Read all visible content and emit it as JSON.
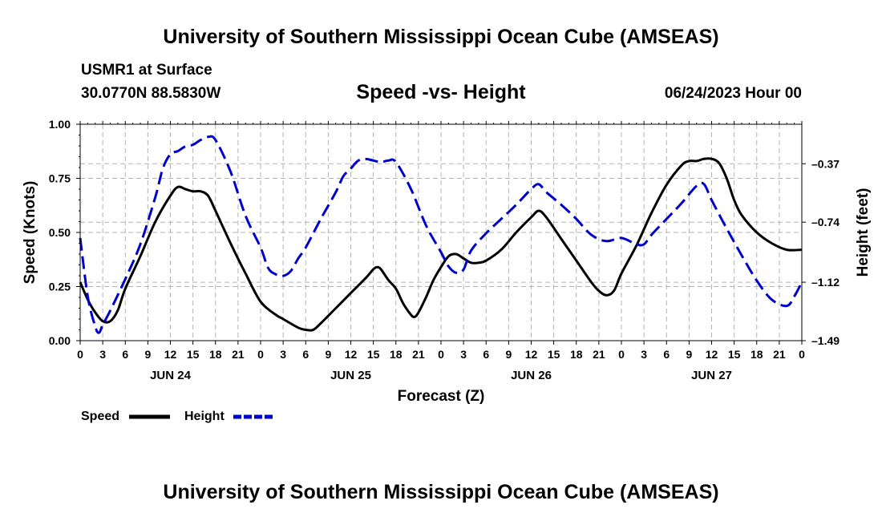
{
  "header": {
    "title": "University of Southern Mississippi Ocean Cube (AMSEAS)",
    "station": "USMR1 at Surface",
    "coords": "30.0770N  88.5830W",
    "chart_title": "Speed -vs- Height",
    "datetime": "06/24/2023 Hour 00"
  },
  "footer": {
    "title": "University of Southern Mississippi Ocean Cube (AMSEAS)"
  },
  "legend": [
    {
      "label": "Speed",
      "color": "#000000",
      "dash": "solid"
    },
    {
      "label": "Height",
      "color": "#0000cc",
      "dash": "dashed"
    }
  ],
  "chart_data": {
    "type": "line",
    "xlabel": "Forecast (Z)",
    "ylabel_left": "Speed (Knots)",
    "ylabel_right": "Height (feet)",
    "x_range": [
      0,
      96
    ],
    "x_tick_step": 3,
    "x_tick_labels": [
      "0",
      "3",
      "6",
      "9",
      "12",
      "15",
      "18",
      "21",
      "0",
      "3",
      "6",
      "9",
      "12",
      "15",
      "18",
      "21",
      "0",
      "3",
      "6",
      "9",
      "12",
      "15",
      "18",
      "21",
      "0",
      "3",
      "6",
      "9",
      "12",
      "15",
      "18",
      "21",
      "0"
    ],
    "day_labels": [
      {
        "hour": 12,
        "label": "JUN 24"
      },
      {
        "hour": 36,
        "label": "JUN 25"
      },
      {
        "hour": 60,
        "label": "JUN 26"
      },
      {
        "hour": 84,
        "label": "JUN 27"
      }
    ],
    "y_left": {
      "range": [
        0,
        1.0
      ],
      "ticks": [
        "0.00",
        "0.25",
        "0.50",
        "0.75",
        "1.00"
      ],
      "values": [
        0,
        0.25,
        0.5,
        0.75,
        1.0
      ]
    },
    "y_right": {
      "range": [
        -1.49,
        -0.12
      ],
      "ticks": [
        "-0.37",
        "-0.74",
        "-1.12",
        "-1.49"
      ],
      "values": [
        -0.37,
        -0.74,
        -1.12,
        -1.49
      ]
    },
    "series": [
      {
        "name": "Speed",
        "axis": "left",
        "color": "#000000",
        "points": [
          [
            0,
            0.27
          ],
          [
            1,
            0.19
          ],
          [
            2,
            0.13
          ],
          [
            3,
            0.09
          ],
          [
            4,
            0.09
          ],
          [
            5,
            0.14
          ],
          [
            6,
            0.24
          ],
          [
            8,
            0.39
          ],
          [
            10,
            0.55
          ],
          [
            12,
            0.67
          ],
          [
            13,
            0.71
          ],
          [
            14,
            0.7
          ],
          [
            15,
            0.69
          ],
          [
            16,
            0.69
          ],
          [
            17,
            0.67
          ],
          [
            18,
            0.6
          ],
          [
            20,
            0.45
          ],
          [
            22,
            0.31
          ],
          [
            24,
            0.18
          ],
          [
            26,
            0.12
          ],
          [
            27,
            0.1
          ],
          [
            29,
            0.06
          ],
          [
            30,
            0.05
          ],
          [
            31,
            0.05
          ],
          [
            32,
            0.08
          ],
          [
            34,
            0.15
          ],
          [
            36,
            0.22
          ],
          [
            38,
            0.29
          ],
          [
            39,
            0.33
          ],
          [
            39.5,
            0.34
          ],
          [
            40,
            0.33
          ],
          [
            41,
            0.28
          ],
          [
            42,
            0.24
          ],
          [
            43,
            0.17
          ],
          [
            44,
            0.12
          ],
          [
            44.5,
            0.11
          ],
          [
            45,
            0.13
          ],
          [
            46,
            0.2
          ],
          [
            47,
            0.28
          ],
          [
            48,
            0.34
          ],
          [
            49,
            0.39
          ],
          [
            50,
            0.4
          ],
          [
            51,
            0.38
          ],
          [
            52,
            0.36
          ],
          [
            53,
            0.36
          ],
          [
            54,
            0.37
          ],
          [
            56,
            0.42
          ],
          [
            58,
            0.5
          ],
          [
            60,
            0.57
          ],
          [
            61,
            0.6
          ],
          [
            62,
            0.57
          ],
          [
            64,
            0.47
          ],
          [
            66,
            0.37
          ],
          [
            68,
            0.27
          ],
          [
            69,
            0.23
          ],
          [
            70,
            0.21
          ],
          [
            71,
            0.23
          ],
          [
            72,
            0.31
          ],
          [
            74,
            0.44
          ],
          [
            76,
            0.59
          ],
          [
            78,
            0.72
          ],
          [
            80,
            0.81
          ],
          [
            81,
            0.83
          ],
          [
            82,
            0.83
          ],
          [
            83,
            0.84
          ],
          [
            84,
            0.84
          ],
          [
            85,
            0.82
          ],
          [
            86,
            0.75
          ],
          [
            87,
            0.65
          ],
          [
            88,
            0.58
          ],
          [
            90,
            0.5
          ],
          [
            92,
            0.45
          ],
          [
            94,
            0.42
          ],
          [
            96,
            0.42
          ]
        ]
      },
      {
        "name": "Height",
        "axis": "right",
        "color": "#0000cc",
        "points": [
          [
            0,
            -0.84
          ],
          [
            1,
            -1.21
          ],
          [
            2,
            -1.4
          ],
          [
            2.5,
            -1.44
          ],
          [
            3,
            -1.39
          ],
          [
            4,
            -1.3
          ],
          [
            6,
            -1.1
          ],
          [
            8,
            -0.88
          ],
          [
            10,
            -0.58
          ],
          [
            11,
            -0.4
          ],
          [
            12,
            -0.31
          ],
          [
            13,
            -0.29
          ],
          [
            14,
            -0.26
          ],
          [
            15,
            -0.25
          ],
          [
            16,
            -0.22
          ],
          [
            17,
            -0.2
          ],
          [
            18,
            -0.22
          ],
          [
            20,
            -0.42
          ],
          [
            22,
            -0.7
          ],
          [
            24,
            -0.9
          ],
          [
            25,
            -1.03
          ],
          [
            26,
            -1.07
          ],
          [
            27,
            -1.08
          ],
          [
            28,
            -1.05
          ],
          [
            29,
            -0.97
          ],
          [
            30,
            -0.9
          ],
          [
            32,
            -0.72
          ],
          [
            34,
            -0.55
          ],
          [
            35,
            -0.45
          ],
          [
            36,
            -0.4
          ],
          [
            37,
            -0.35
          ],
          [
            38,
            -0.34
          ],
          [
            39,
            -0.35
          ],
          [
            40,
            -0.36
          ],
          [
            41,
            -0.35
          ],
          [
            42,
            -0.36
          ],
          [
            44,
            -0.53
          ],
          [
            46,
            -0.76
          ],
          [
            48,
            -0.93
          ],
          [
            49,
            -1.02
          ],
          [
            50,
            -1.06
          ],
          [
            51,
            -1.04
          ],
          [
            52,
            -0.92
          ],
          [
            54,
            -0.81
          ],
          [
            56,
            -0.72
          ],
          [
            58,
            -0.63
          ],
          [
            60,
            -0.53
          ],
          [
            61,
            -0.5
          ],
          [
            62,
            -0.55
          ],
          [
            64,
            -0.63
          ],
          [
            66,
            -0.72
          ],
          [
            68,
            -0.82
          ],
          [
            70,
            -0.86
          ],
          [
            72,
            -0.84
          ],
          [
            74,
            -0.88
          ],
          [
            75,
            -0.88
          ],
          [
            76,
            -0.82
          ],
          [
            78,
            -0.72
          ],
          [
            80,
            -0.62
          ],
          [
            82,
            -0.51
          ],
          [
            83,
            -0.5
          ],
          [
            84,
            -0.6
          ],
          [
            86,
            -0.78
          ],
          [
            88,
            -0.95
          ],
          [
            90,
            -1.11
          ],
          [
            92,
            -1.23
          ],
          [
            94,
            -1.27
          ],
          [
            95,
            -1.21
          ],
          [
            96,
            -1.12
          ]
        ]
      }
    ]
  }
}
